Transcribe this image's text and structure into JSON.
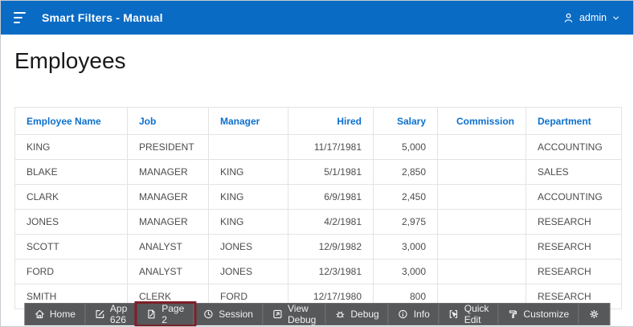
{
  "app_bar": {
    "title": "Smart Filters - Manual",
    "user_label": "admin"
  },
  "page": {
    "title": "Employees"
  },
  "table": {
    "columns": [
      {
        "label": "Employee Name",
        "align": "left"
      },
      {
        "label": "Job",
        "align": "left"
      },
      {
        "label": "Manager",
        "align": "left"
      },
      {
        "label": "Hired",
        "align": "right"
      },
      {
        "label": "Salary",
        "align": "right"
      },
      {
        "label": "Commission",
        "align": "right"
      },
      {
        "label": "Department",
        "align": "left"
      }
    ],
    "rows": [
      [
        "KING",
        "PRESIDENT",
        "",
        "11/17/1981",
        "5,000",
        "",
        "ACCOUNTING"
      ],
      [
        "BLAKE",
        "MANAGER",
        "KING",
        "5/1/1981",
        "2,850",
        "",
        "SALES"
      ],
      [
        "CLARK",
        "MANAGER",
        "KING",
        "6/9/1981",
        "2,450",
        "",
        "ACCOUNTING"
      ],
      [
        "JONES",
        "MANAGER",
        "KING",
        "4/2/1981",
        "2,975",
        "",
        "RESEARCH"
      ],
      [
        "SCOTT",
        "ANALYST",
        "JONES",
        "12/9/1982",
        "3,000",
        "",
        "RESEARCH"
      ],
      [
        "FORD",
        "ANALYST",
        "JONES",
        "12/3/1981",
        "3,000",
        "",
        "RESEARCH"
      ],
      [
        "SMITH",
        "CLERK",
        "FORD",
        "12/17/1980",
        "800",
        "",
        "RESEARCH"
      ]
    ]
  },
  "dev_toolbar": {
    "items": [
      {
        "label": "Home",
        "icon": "home-icon",
        "highlighted": false
      },
      {
        "label": "App 626",
        "icon": "edit-app-icon",
        "highlighted": false
      },
      {
        "label": "Page 2",
        "icon": "page-icon",
        "highlighted": true
      },
      {
        "label": "Session",
        "icon": "session-icon",
        "highlighted": false
      },
      {
        "label": "View Debug",
        "icon": "view-debug-icon",
        "highlighted": false
      },
      {
        "label": "Debug",
        "icon": "debug-icon",
        "highlighted": false
      },
      {
        "label": "Info",
        "icon": "info-icon",
        "highlighted": false
      },
      {
        "label": "Quick Edit",
        "icon": "quick-edit-icon",
        "highlighted": false
      },
      {
        "label": "Customize",
        "icon": "customize-icon",
        "highlighted": false
      },
      {
        "label": "",
        "icon": "gear-icon",
        "highlighted": false
      }
    ]
  },
  "colors": {
    "app_bar_bg": "#0a6bc4",
    "column_header_text": "#0d70cd",
    "toolbar_bg": "#57585a",
    "highlight_border": "#7d2027"
  }
}
